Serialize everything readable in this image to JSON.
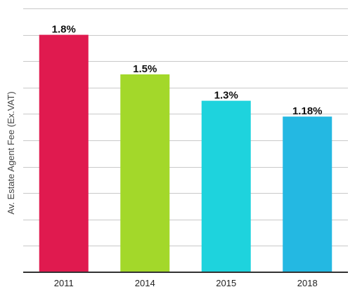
{
  "chart_data": {
    "type": "bar",
    "categories": [
      "2011",
      "2014",
      "2015",
      "2018"
    ],
    "values": [
      1.8,
      1.5,
      1.3,
      1.18
    ],
    "data_labels": [
      "1.8%",
      "1.5%",
      "1.3%",
      "1.18%"
    ],
    "colors": [
      "#e01a4f",
      "#a3d82a",
      "#1ed3dd",
      "#24b8e2"
    ],
    "title": "",
    "xlabel": "",
    "ylabel": "Av. Estate Agent Fee (Ex.VAT)",
    "ylim": [
      0,
      2.0
    ],
    "y_step": 0.2,
    "grid": true,
    "legend": "none"
  }
}
